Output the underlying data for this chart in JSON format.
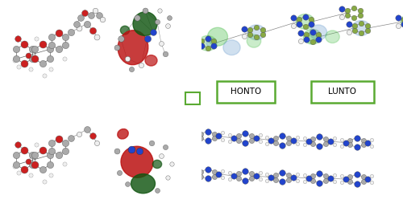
{
  "background_color": "#ffffff",
  "honto_box": {
    "text": "HONTO",
    "box_color": "#5aaa32",
    "text_color": "#000000",
    "fontsize": 7.5,
    "linewidth": 1.8
  },
  "lunto_box": {
    "text": "LUNTO",
    "box_color": "#5aaa32",
    "text_color": "#000000",
    "fontsize": 7.5,
    "linewidth": 1.8
  },
  "figsize": [
    5.0,
    2.69
  ],
  "dpi": 100,
  "atom_grey": "#aaaaaa",
  "atom_red": "#cc2020",
  "atom_white": "#eeeeee",
  "atom_blue": "#2244cc",
  "atom_green_olive": "#88aa44",
  "orbital_red": "#bb1111",
  "orbital_green": "#115511",
  "orbital_blue_pale": "#6699cc",
  "orbital_green_bright": "#44bb44"
}
